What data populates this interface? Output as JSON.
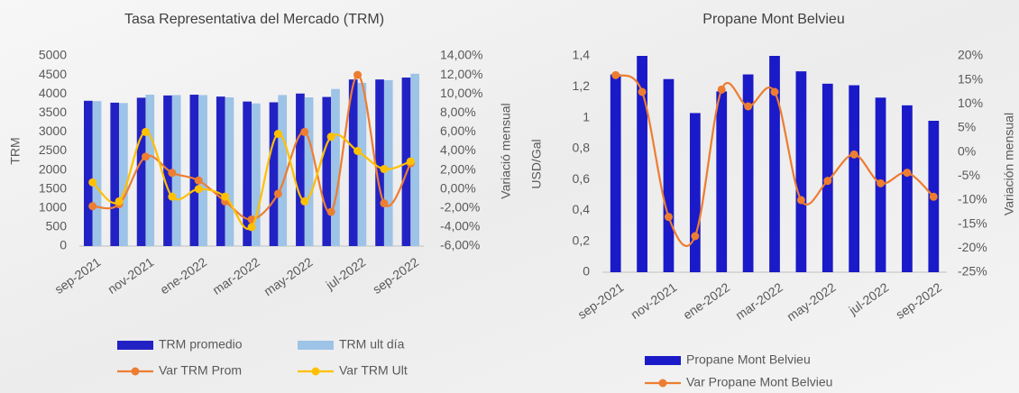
{
  "chart_data": [
    {
      "type": "bar",
      "title": "Tasa Representativa del Mercado (TRM)",
      "y_label": "TRM",
      "y2_label": "Variació mensual",
      "categories": [
        "sep-2021",
        null,
        "nov-2021",
        null,
        "ene-2022",
        null,
        "mar-2022",
        null,
        "may-2022",
        null,
        "jul-2022",
        null,
        "sep-2022"
      ],
      "ylim": [
        0,
        5000
      ],
      "yticks": [
        0,
        500,
        1000,
        1500,
        2000,
        2500,
        3000,
        3500,
        4000,
        4500,
        5000
      ],
      "y2lim": [
        -6,
        14
      ],
      "y2ticks": [
        {
          "value": -6,
          "label": "-6,00%"
        },
        {
          "value": -4,
          "label": "-4,00%"
        },
        {
          "value": -2,
          "label": "-2,00%"
        },
        {
          "value": 0,
          "label": "0,00%"
        },
        {
          "value": 2,
          "label": "2,00%"
        },
        {
          "value": 4,
          "label": "4,00%"
        },
        {
          "value": 6,
          "label": "6,00%"
        },
        {
          "value": 8,
          "label": "8,00%"
        },
        {
          "value": 10,
          "label": "10,00%"
        },
        {
          "value": 12,
          "label": "12,00%"
        },
        {
          "value": 14,
          "label": "14,00%"
        }
      ],
      "series": [
        {
          "name": "TRM promedio",
          "color": "#2222c4",
          "values": [
            3820,
            3770,
            3900,
            3960,
            3980,
            3930,
            3800,
            3780,
            4010,
            3920,
            4380,
            4380,
            4430
          ]
        },
        {
          "name": "TRM ult día",
          "color": "#9dc3e6",
          "values": [
            3810,
            3760,
            3980,
            3970,
            3970,
            3910,
            3750,
            3970,
            3910,
            4130,
            4290,
            4360,
            4530
          ]
        },
        {
          "name": "Var TRM Prom",
          "color": "#ed7d31",
          "type": "line",
          "axis": "y2",
          "values": [
            -1.8,
            -1.6,
            3.4,
            1.7,
            0.9,
            -1.3,
            -3.2,
            -0.5,
            6.0,
            -2.4,
            12.0,
            -1.5,
            2.7
          ]
        },
        {
          "name": "Var TRM Ult",
          "color": "#ffc000",
          "type": "line",
          "axis": "y2",
          "values": [
            0.7,
            -1.3,
            6.0,
            -0.8,
            0.0,
            -0.8,
            -4.0,
            5.8,
            -1.3,
            5.5,
            4.0,
            2.1,
            2.9
          ]
        }
      ]
    },
    {
      "type": "bar",
      "title": "Propane Mont Belvieu",
      "y_label": "USD/Gal",
      "y2_label": "Variación mensual",
      "categories": [
        "sep-2021",
        null,
        "nov-2021",
        null,
        "ene-2022",
        null,
        "mar-2022",
        null,
        "may-2022",
        null,
        "jul-2022",
        null,
        "sep-2022"
      ],
      "ylim": [
        0,
        1.4
      ],
      "yticks": [
        0,
        {
          "value": 0.2,
          "label": "0,2"
        },
        {
          "value": 0.4,
          "label": "0,4"
        },
        {
          "value": 0.6,
          "label": "0,6"
        },
        {
          "value": 0.8,
          "label": "0,8"
        },
        1,
        {
          "value": 1.2,
          "label": "1,2"
        },
        {
          "value": 1.4,
          "label": "1,4"
        }
      ],
      "y2lim": [
        -25,
        20
      ],
      "y2ticks": [
        {
          "value": -25,
          "label": "-25%"
        },
        {
          "value": -20,
          "label": "-20%"
        },
        {
          "value": -15,
          "label": "-15%"
        },
        {
          "value": -10,
          "label": "-10%"
        },
        {
          "value": -5,
          "label": "-5%"
        },
        {
          "value": 0,
          "label": "0%"
        },
        {
          "value": 5,
          "label": "5%"
        },
        {
          "value": 10,
          "label": "10%"
        },
        {
          "value": 15,
          "label": "15%"
        },
        {
          "value": 20,
          "label": "20%"
        }
      ],
      "series": [
        {
          "name": "Propane Mont Belvieu",
          "color": "#1a1ac8",
          "values": [
            1.28,
            1.4,
            1.25,
            1.03,
            1.17,
            1.28,
            1.4,
            1.3,
            1.22,
            1.21,
            1.13,
            1.08,
            0.98
          ]
        },
        {
          "name": "Var Propane Mont Belvieu",
          "color": "#ed7d31",
          "type": "line",
          "axis": "y2",
          "values": [
            16,
            12.5,
            -13.5,
            -17.5,
            13,
            9.5,
            12.5,
            -10,
            -6,
            -0.5,
            -6.5,
            -4.3,
            -9.3
          ]
        }
      ]
    }
  ]
}
